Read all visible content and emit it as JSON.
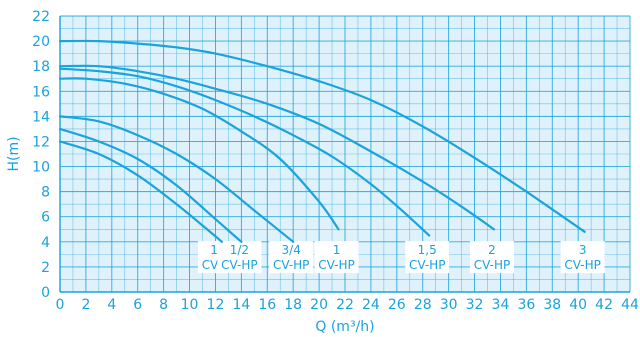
{
  "chart_data": {
    "type": "line",
    "title": "",
    "xlabel": "Q (m³/h)",
    "ylabel": "H(m)",
    "xlim": [
      0,
      44
    ],
    "ylim": [
      0,
      22
    ],
    "x_ticks": [
      "0",
      "2",
      "4",
      "6",
      "8",
      "10",
      "12",
      "14",
      "16",
      "18",
      "20",
      "22",
      "24",
      "26",
      "28",
      "30",
      "32",
      "34",
      "36",
      "38",
      "40",
      "42",
      "44"
    ],
    "y_ticks": [
      "0",
      "2",
      "4",
      "6",
      "8",
      "10",
      "12",
      "14",
      "16",
      "18",
      "20",
      "22"
    ],
    "grid": true,
    "colors": {
      "line": "#1aa3dc",
      "grid": "#1aa3dc",
      "background": "#dff2fb",
      "text": "#1aa3dc"
    },
    "series": [
      {
        "label": [
          "1/3",
          "CV-HP"
        ],
        "points": [
          [
            0,
            12.0
          ],
          [
            3,
            11.0
          ],
          [
            6,
            9.3
          ],
          [
            9,
            7.0
          ],
          [
            11,
            5.3
          ],
          [
            12.5,
            4.0
          ]
        ]
      },
      {
        "label": [
          "1/2",
          "CV-HP"
        ],
        "points": [
          [
            0,
            13.0
          ],
          [
            3,
            12.0
          ],
          [
            6,
            10.6
          ],
          [
            9,
            8.5
          ],
          [
            12,
            5.8
          ],
          [
            14,
            4.0
          ]
        ]
      },
      {
        "label": [
          "3/4",
          "CV-HP"
        ],
        "points": [
          [
            0,
            14.0
          ],
          [
            3,
            13.6
          ],
          [
            6,
            12.5
          ],
          [
            9,
            11.0
          ],
          [
            12,
            9.0
          ],
          [
            15,
            6.5
          ],
          [
            18,
            4.0
          ]
        ]
      },
      {
        "label": [
          "1",
          "CV-HP"
        ],
        "points": [
          [
            0,
            17.0
          ],
          [
            2,
            17.0
          ],
          [
            5,
            16.6
          ],
          [
            8,
            15.8
          ],
          [
            11,
            14.6
          ],
          [
            14,
            12.8
          ],
          [
            17,
            10.6
          ],
          [
            20,
            7.2
          ],
          [
            21.5,
            5.0
          ]
        ]
      },
      {
        "label": [
          "1,5",
          "CV-HP"
        ],
        "points": [
          [
            0,
            17.8
          ],
          [
            3,
            17.6
          ],
          [
            6,
            17.2
          ],
          [
            9,
            16.4
          ],
          [
            12,
            15.3
          ],
          [
            15,
            14.0
          ],
          [
            18,
            12.5
          ],
          [
            21,
            10.8
          ],
          [
            24,
            8.6
          ],
          [
            26.5,
            6.4
          ],
          [
            28.5,
            4.5
          ]
        ]
      },
      {
        "label": [
          "2",
          "CV-HP"
        ],
        "points": [
          [
            0,
            18.0
          ],
          [
            3,
            18.0
          ],
          [
            6,
            17.6
          ],
          [
            9,
            17.0
          ],
          [
            12,
            16.2
          ],
          [
            16,
            15.0
          ],
          [
            20,
            13.4
          ],
          [
            24,
            11.2
          ],
          [
            28,
            8.8
          ],
          [
            31,
            6.8
          ],
          [
            33.5,
            5.0
          ]
        ]
      },
      {
        "label": [
          "3",
          "CV-HP"
        ],
        "points": [
          [
            0,
            20.0
          ],
          [
            3,
            20.0
          ],
          [
            6,
            19.8
          ],
          [
            9,
            19.5
          ],
          [
            12,
            19.0
          ],
          [
            16,
            18.0
          ],
          [
            20,
            16.8
          ],
          [
            24,
            15.3
          ],
          [
            28,
            13.2
          ],
          [
            32,
            10.7
          ],
          [
            36,
            8.0
          ],
          [
            40.5,
            4.8
          ]
        ]
      }
    ]
  }
}
